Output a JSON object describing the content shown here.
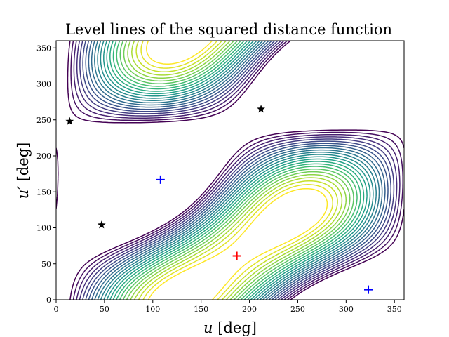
{
  "chart_data": {
    "type": "contour",
    "title": "Level lines of the squared distance function",
    "xlabel": {
      "var": "u",
      "unit": "[deg]"
    },
    "ylabel": {
      "var": "u′",
      "unit": "[deg]"
    },
    "xlim": [
      0,
      360
    ],
    "ylim": [
      0,
      360
    ],
    "xticks": [
      0,
      50,
      100,
      150,
      200,
      250,
      300,
      350
    ],
    "yticks": [
      0,
      50,
      100,
      150,
      200,
      250,
      300,
      350
    ],
    "colormap": "viridis_r",
    "levels": [
      0.4,
      0.8,
      1.2,
      1.6,
      2.0,
      2.4,
      2.8,
      3.2,
      3.6,
      4.0,
      4.4,
      4.8,
      5.2,
      5.6,
      6.0,
      6.4,
      6.8,
      7.2,
      7.6,
      8.0,
      8.4,
      8.8,
      9.2,
      9.6
    ],
    "minimum": {
      "u": 187,
      "v": 61
    },
    "markers": [
      {
        "symbol": "star",
        "color": "#000000",
        "u": 14,
        "v": 248
      },
      {
        "symbol": "star",
        "color": "#000000",
        "u": 47,
        "v": 104
      },
      {
        "symbol": "star",
        "color": "#000000",
        "u": 212,
        "v": 265
      },
      {
        "symbol": "plus",
        "color": "#0000ff",
        "u": 108,
        "v": 167
      },
      {
        "symbol": "plus",
        "color": "#0000ff",
        "u": 323,
        "v": 14
      },
      {
        "symbol": "plus",
        "color": "#ff0000",
        "u": 187,
        "v": 61
      }
    ]
  }
}
